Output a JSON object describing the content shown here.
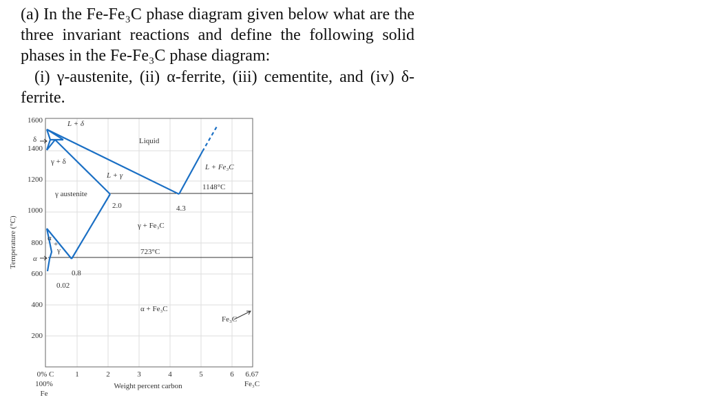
{
  "question": {
    "intro": "(a) In the Fe-Fe₃C phase diagram given below what are the three invariant reactions and define the following solid phases in the Fe-Fe₃C phase diagram:",
    "phases": "(i) γ-austenite, (ii) α-ferrite, (iii) cementite, and (iv) δ-ferrite."
  },
  "figure": {
    "y_axis_label": "Temperature (°C)",
    "y_tick_labels": [
      "1600",
      "1400",
      "1200",
      "1000",
      "800",
      "600",
      "400",
      "200"
    ],
    "x_tick_labels": [
      "0% C",
      "1",
      "2",
      "3",
      "4",
      "5",
      "6",
      "6.67"
    ],
    "x_left_labels": [
      "100%",
      "Fe"
    ],
    "x_right_label": "Fe₃C",
    "x_axis_label": "Weight percent carbon",
    "regions": {
      "l_delta": "L + δ",
      "delta": "δ",
      "gamma_delta": "γ + δ",
      "liquid": "Liquid",
      "l_gamma": "L + γ",
      "l_fe3c": "L + Fe₃C",
      "gamma_austenite": "γ austenite",
      "gamma_fe3c": "γ + Fe₃C",
      "alpha_small": "α",
      "plus": "+",
      "gamma_small": "γ",
      "alpha_axis": "α",
      "alpha_fe3c": "α + Fe₃C",
      "fe3c": "Fe₃C"
    },
    "annotations": {
      "eutectic_temp": "1148°C",
      "c_2": "2.0",
      "c_43": "4.3",
      "eutectoid_temp": "723°C",
      "c_08": "0.8",
      "c_002": "0.02"
    }
  }
}
